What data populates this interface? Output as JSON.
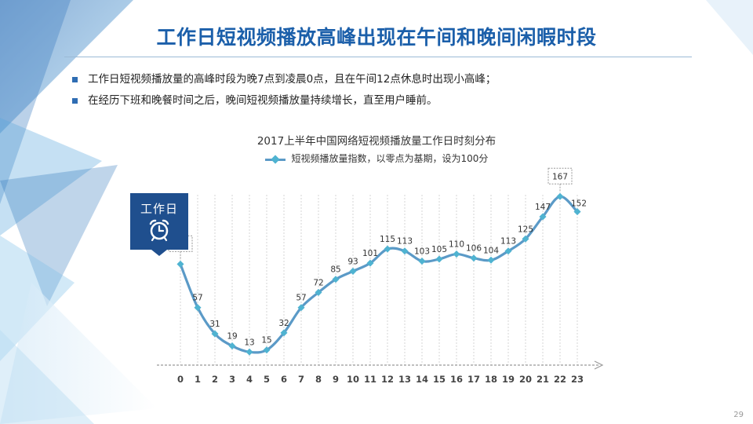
{
  "slide": {
    "title": "工作日短视频播放高峰出现在午间和晚间闲暇时段",
    "bullets": [
      "工作日短视频播放量的高峰时段为晚7点到凌晨0点，且在午间12点休息时出现小高峰；",
      "在经历下班和晚餐时间之后，晚间短视频播放量持续增长，直至用户睡前。"
    ],
    "badge_label": "工作日",
    "page_number": "29"
  },
  "colors": {
    "title": "#1b5faa",
    "line": "#5b9ac7",
    "marker": "#4fb3d1",
    "badge": "#1f4f8e"
  },
  "chart_data": {
    "type": "line",
    "title": "2017上半年中国网络短视频播放量工作日时刻分布",
    "legend_position": "top",
    "categories": [
      "0",
      "1",
      "2",
      "3",
      "4",
      "5",
      "6",
      "7",
      "8",
      "9",
      "10",
      "11",
      "12",
      "13",
      "14",
      "15",
      "16",
      "17",
      "18",
      "19",
      "20",
      "21",
      "22",
      "23"
    ],
    "series": [
      {
        "name": "短视频播放量指数，以零点为基期，设为100分",
        "values": [
          100,
          57,
          31,
          19,
          13,
          15,
          32,
          57,
          72,
          85,
          93,
          101,
          115,
          113,
          103,
          105,
          110,
          106,
          104,
          113,
          125,
          147,
          167,
          152
        ]
      }
    ],
    "callouts": [
      0,
      22
    ],
    "ylim": [
      0,
      175
    ],
    "grid": true
  }
}
